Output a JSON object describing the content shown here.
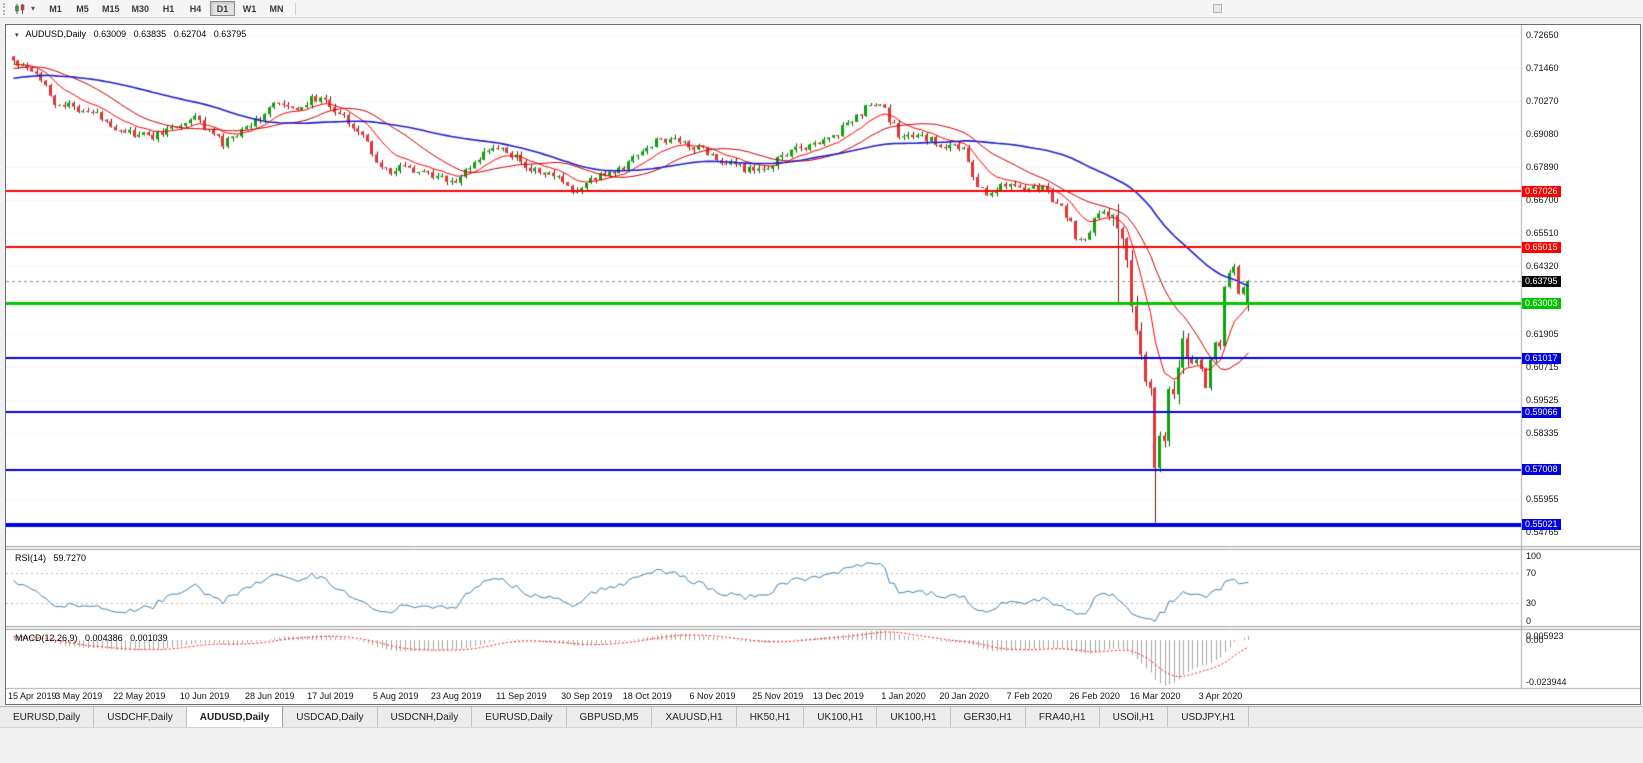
{
  "toolbar": {
    "timeframes": [
      "M1",
      "M5",
      "M15",
      "M30",
      "H1",
      "H4",
      "D1",
      "W1",
      "MN"
    ],
    "active_timeframe": "D1"
  },
  "chart_header": {
    "menu_icon": "▾",
    "symbol": "AUDUSD,Daily",
    "open": "0.63009",
    "high": "0.63835",
    "low": "0.62704",
    "close": "0.63795"
  },
  "price_axis": {
    "ticks": [
      {
        "v": 0.7265,
        "label": "0.72650"
      },
      {
        "v": 0.7146,
        "label": "0.71460"
      },
      {
        "v": 0.7027,
        "label": "0.70270"
      },
      {
        "v": 0.6908,
        "label": "0.69080"
      },
      {
        "v": 0.6789,
        "label": "0.67890"
      },
      {
        "v": 0.667,
        "label": "0.66700"
      },
      {
        "v": 0.6551,
        "label": "0.65510"
      },
      {
        "v": 0.6432,
        "label": "0.64320"
      },
      {
        "v": 0.61905,
        "label": "0.61905"
      },
      {
        "v": 0.60715,
        "label": "0.60715"
      },
      {
        "v": 0.59525,
        "label": "0.59525"
      },
      {
        "v": 0.58335,
        "label": "0.58335"
      },
      {
        "v": 0.55955,
        "label": "0.55955"
      },
      {
        "v": 0.54765,
        "label": "0.54765"
      }
    ],
    "grid_extra": [
      0.6313,
      0.57145
    ]
  },
  "levels": [
    {
      "v": 0.67026,
      "label": "0.67026",
      "color": "#FF0000",
      "width": 2
    },
    {
      "v": 0.65015,
      "label": "0.65015",
      "color": "#FF0000",
      "width": 2
    },
    {
      "v": 0.63003,
      "label": "0.63003",
      "color": "#00C400",
      "width": 3
    },
    {
      "v": 0.61017,
      "label": "0.61017",
      "color": "#0000E6",
      "width": 2
    },
    {
      "v": 0.59066,
      "label": "0.59066",
      "color": "#0000E6",
      "width": 2
    },
    {
      "v": 0.57008,
      "label": "0.57008",
      "color": "#0000E6",
      "width": 2
    },
    {
      "v": 0.55021,
      "label": "0.55021",
      "color": "#0000E6",
      "width": 4
    }
  ],
  "current_price": {
    "v": 0.63795,
    "label": "0.63795",
    "color": "#000000"
  },
  "rsi_panel": {
    "name": "RSI(14)",
    "value": "59.7270",
    "levels": [
      100,
      70,
      30,
      0
    ],
    "line_color": "#4682B4",
    "guide_color": "#BBBBBB"
  },
  "macd_panel": {
    "name": "MACD(12,26,9)",
    "value_main": "0.004386",
    "value_signal": "0.001039",
    "axis_labels": [
      "0.005923",
      "0.00",
      "-0.023944"
    ],
    "histogram_color": "#A6A6A6",
    "signal_color": "#FF2020"
  },
  "date_axis": {
    "labels": [
      "15 Apr 2019",
      "3 May 2019",
      "22 May 2019",
      "10 Jun 2019",
      "28 Jun 2019",
      "17 Jul 2019",
      "5 Aug 2019",
      "23 Aug 2019",
      "11 Sep 2019",
      "30 Sep 2019",
      "18 Oct 2019",
      "6 Nov 2019",
      "25 Nov 2019",
      "13 Dec 2019",
      "1 Jan 2020",
      "20 Jan 2020",
      "7 Feb 2020",
      "26 Feb 2020",
      "16 Mar 2020",
      "3 Apr 2020"
    ]
  },
  "tabbar": {
    "tabs": [
      "EURUSD,Daily",
      "USDCHF,Daily",
      "AUDUSD,Daily",
      "USDCAD,Daily",
      "USDCNH,Daily",
      "EURUSD,Daily",
      "GBPUSD,M5",
      "XAUUSD,H1",
      "HK50,H1",
      "UK100,H1",
      "UK100,H1",
      "GER30,H1",
      "FRA40,H1",
      "USOil,H1",
      "USDJPY,H1"
    ],
    "active_index": 2
  },
  "chart_data": {
    "type": "candlestick",
    "symbol": "AUDUSD",
    "period": "Daily",
    "bars": 266,
    "price_range": {
      "max": 0.7301,
      "min": 0.5426
    },
    "last_bar": {
      "open": 0.63009,
      "high": 0.63835,
      "low": 0.62704,
      "close": 0.63795
    },
    "close_anchors": [
      [
        0,
        0.717
      ],
      [
        4,
        0.7145
      ],
      [
        7,
        0.7095
      ],
      [
        9,
        0.7015
      ],
      [
        13,
        0.7005
      ],
      [
        17,
        0.6985
      ],
      [
        22,
        0.6935
      ],
      [
        26,
        0.6905
      ],
      [
        30,
        0.69
      ],
      [
        34,
        0.693
      ],
      [
        39,
        0.6965
      ],
      [
        42,
        0.6925
      ],
      [
        45,
        0.687
      ],
      [
        49,
        0.692
      ],
      [
        52,
        0.696
      ],
      [
        56,
        0.7015
      ],
      [
        60,
        0.6995
      ],
      [
        65,
        0.704
      ],
      [
        68,
        0.701
      ],
      [
        72,
        0.696
      ],
      [
        75,
        0.69
      ],
      [
        77,
        0.6845
      ],
      [
        79,
        0.679
      ],
      [
        81,
        0.676
      ],
      [
        84,
        0.6795
      ],
      [
        87,
        0.677
      ],
      [
        91,
        0.6755
      ],
      [
        94,
        0.673
      ],
      [
        97,
        0.677
      ],
      [
        100,
        0.6825
      ],
      [
        104,
        0.686
      ],
      [
        107,
        0.6835
      ],
      [
        110,
        0.679
      ],
      [
        113,
        0.677
      ],
      [
        117,
        0.675
      ],
      [
        120,
        0.67
      ],
      [
        123,
        0.6725
      ],
      [
        126,
        0.6765
      ],
      [
        130,
        0.6775
      ],
      [
        134,
        0.6835
      ],
      [
        138,
        0.6885
      ],
      [
        141,
        0.689
      ],
      [
        144,
        0.688
      ],
      [
        148,
        0.6855
      ],
      [
        152,
        0.681
      ],
      [
        156,
        0.679
      ],
      [
        160,
        0.677
      ],
      [
        163,
        0.68
      ],
      [
        166,
        0.684
      ],
      [
        169,
        0.6855
      ],
      [
        173,
        0.688
      ],
      [
        177,
        0.6915
      ],
      [
        181,
        0.697
      ],
      [
        184,
        0.702
      ],
      [
        187,
        0.699
      ],
      [
        190,
        0.6905
      ],
      [
        194,
        0.69
      ],
      [
        198,
        0.688
      ],
      [
        201,
        0.6865
      ],
      [
        204,
        0.685
      ],
      [
        207,
        0.672
      ],
      [
        209,
        0.669
      ],
      [
        212,
        0.673
      ],
      [
        215,
        0.672
      ],
      [
        218,
        0.6715
      ],
      [
        221,
        0.672
      ],
      [
        224,
        0.6655
      ],
      [
        226,
        0.662
      ],
      [
        228,
        0.6545
      ],
      [
        230,
        0.6515
      ],
      [
        232,
        0.661
      ],
      [
        234,
        0.664
      ],
      [
        236,
        0.66
      ],
      [
        237,
        0.658
      ],
      [
        238,
        0.654
      ],
      [
        239,
        0.649
      ],
      [
        240,
        0.629
      ],
      [
        241,
        0.618
      ],
      [
        242,
        0.612
      ],
      [
        243,
        0.599
      ],
      [
        244,
        0.596
      ],
      [
        245,
        0.574
      ],
      [
        246,
        0.58
      ],
      [
        247,
        0.583
      ],
      [
        248,
        0.596
      ],
      [
        249,
        0.597
      ],
      [
        250,
        0.603
      ],
      [
        251,
        0.617
      ],
      [
        252,
        0.613
      ],
      [
        253,
        0.607
      ],
      [
        254,
        0.609
      ],
      [
        255,
        0.606
      ],
      [
        256,
        0.6
      ],
      [
        257,
        0.6085
      ],
      [
        258,
        0.6165
      ],
      [
        259,
        0.6135
      ],
      [
        260,
        0.635
      ],
      [
        261,
        0.6405
      ],
      [
        262,
        0.644
      ],
      [
        263,
        0.6335
      ],
      [
        264,
        0.636
      ],
      [
        265,
        0.63795
      ]
    ],
    "special_lows": [
      [
        237,
        0.6305
      ],
      [
        245,
        0.551
      ]
    ],
    "volatile_zone": [
      236,
      252
    ],
    "candle_colors": {
      "up_fill": "#0DA10D",
      "up_border": "#076307",
      "down_fill": "#E03535",
      "down_border": "#7E1414"
    },
    "moving_averages": [
      {
        "period": 10,
        "type": "ema",
        "color": "#FF0000",
        "width": 1
      },
      {
        "period": 21,
        "type": "sma",
        "color": "#CC0000",
        "width": 1
      },
      {
        "period": 50,
        "type": "sma",
        "color": "#2020D0",
        "width": 1.6
      }
    ],
    "rsi_period": 14,
    "macd": {
      "fast": 12,
      "slow": 26,
      "signal": 9
    }
  }
}
